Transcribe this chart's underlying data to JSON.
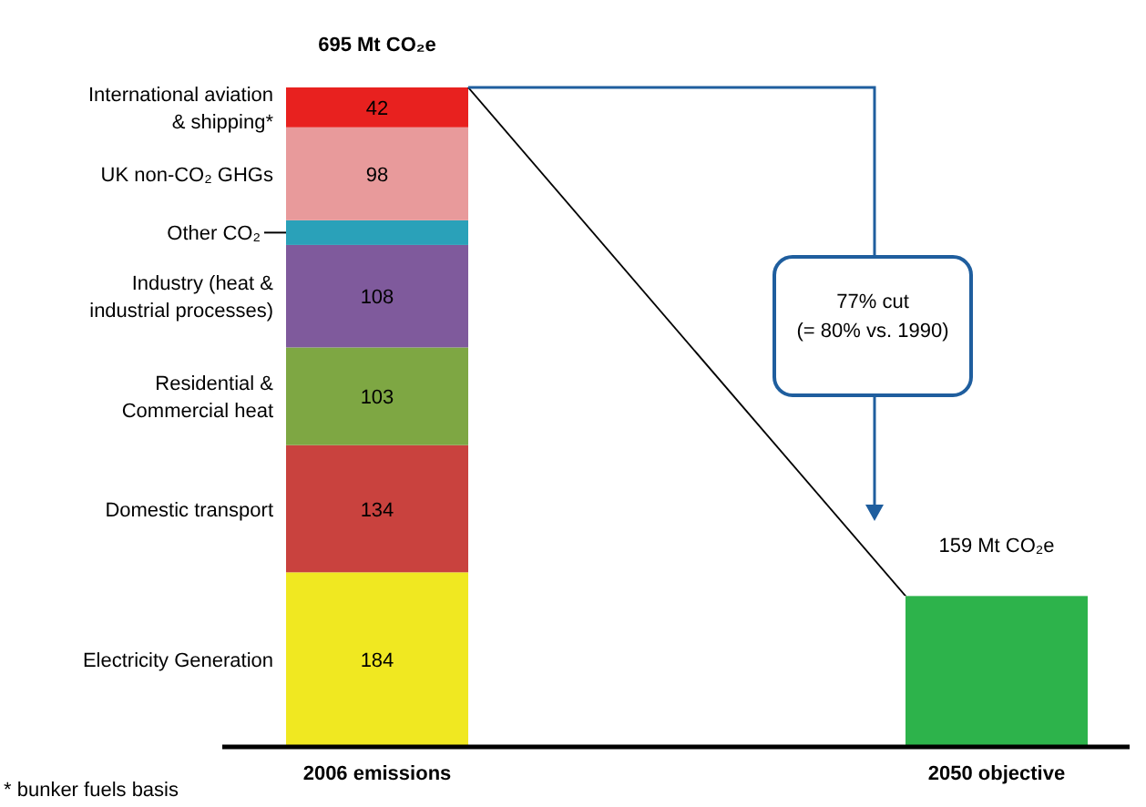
{
  "chart_data": {
    "type": "bar",
    "stacked": true,
    "categories": [
      "2006 emissions",
      "2050 objective"
    ],
    "series": [
      {
        "name": "Electricity Generation",
        "color": "#f0e821",
        "values": [
          184,
          null
        ],
        "value_labels": [
          "184",
          null
        ]
      },
      {
        "name": "Domestic transport",
        "color": "#c9423e",
        "values": [
          134,
          null
        ],
        "value_labels": [
          "134",
          null
        ]
      },
      {
        "name": "Residential & Commercial heat",
        "color": "#7ea743",
        "values": [
          103,
          null
        ],
        "value_labels": [
          "103",
          null
        ]
      },
      {
        "name": "Industry (heat & industrial processes)",
        "color": "#7f5a9c",
        "values": [
          108,
          null
        ],
        "value_labels": [
          "108",
          null
        ]
      },
      {
        "name": "Other CO₂",
        "color": "#2aa1b9",
        "values": [
          26,
          null
        ],
        "value_labels": [
          null,
          null
        ]
      },
      {
        "name": "UK non-CO₂ GHGs",
        "color": "#e89a9b",
        "values": [
          98,
          null
        ],
        "value_labels": [
          "98",
          null
        ]
      },
      {
        "name": "International aviation & shipping*",
        "color": "#e8211f",
        "values": [
          42,
          null
        ],
        "value_labels": [
          "42",
          null
        ]
      },
      {
        "color": "#2db34b",
        "values": [
          null,
          159
        ],
        "value_labels": [
          null,
          null
        ]
      }
    ],
    "legend": false,
    "totals": [
      "695 Mt CO₂e",
      "159 Mt CO₂e"
    ],
    "annotations": [
      "77% cut\n(= 80% vs. 1990)",
      "* bunker fuels basis"
    ]
  }
}
